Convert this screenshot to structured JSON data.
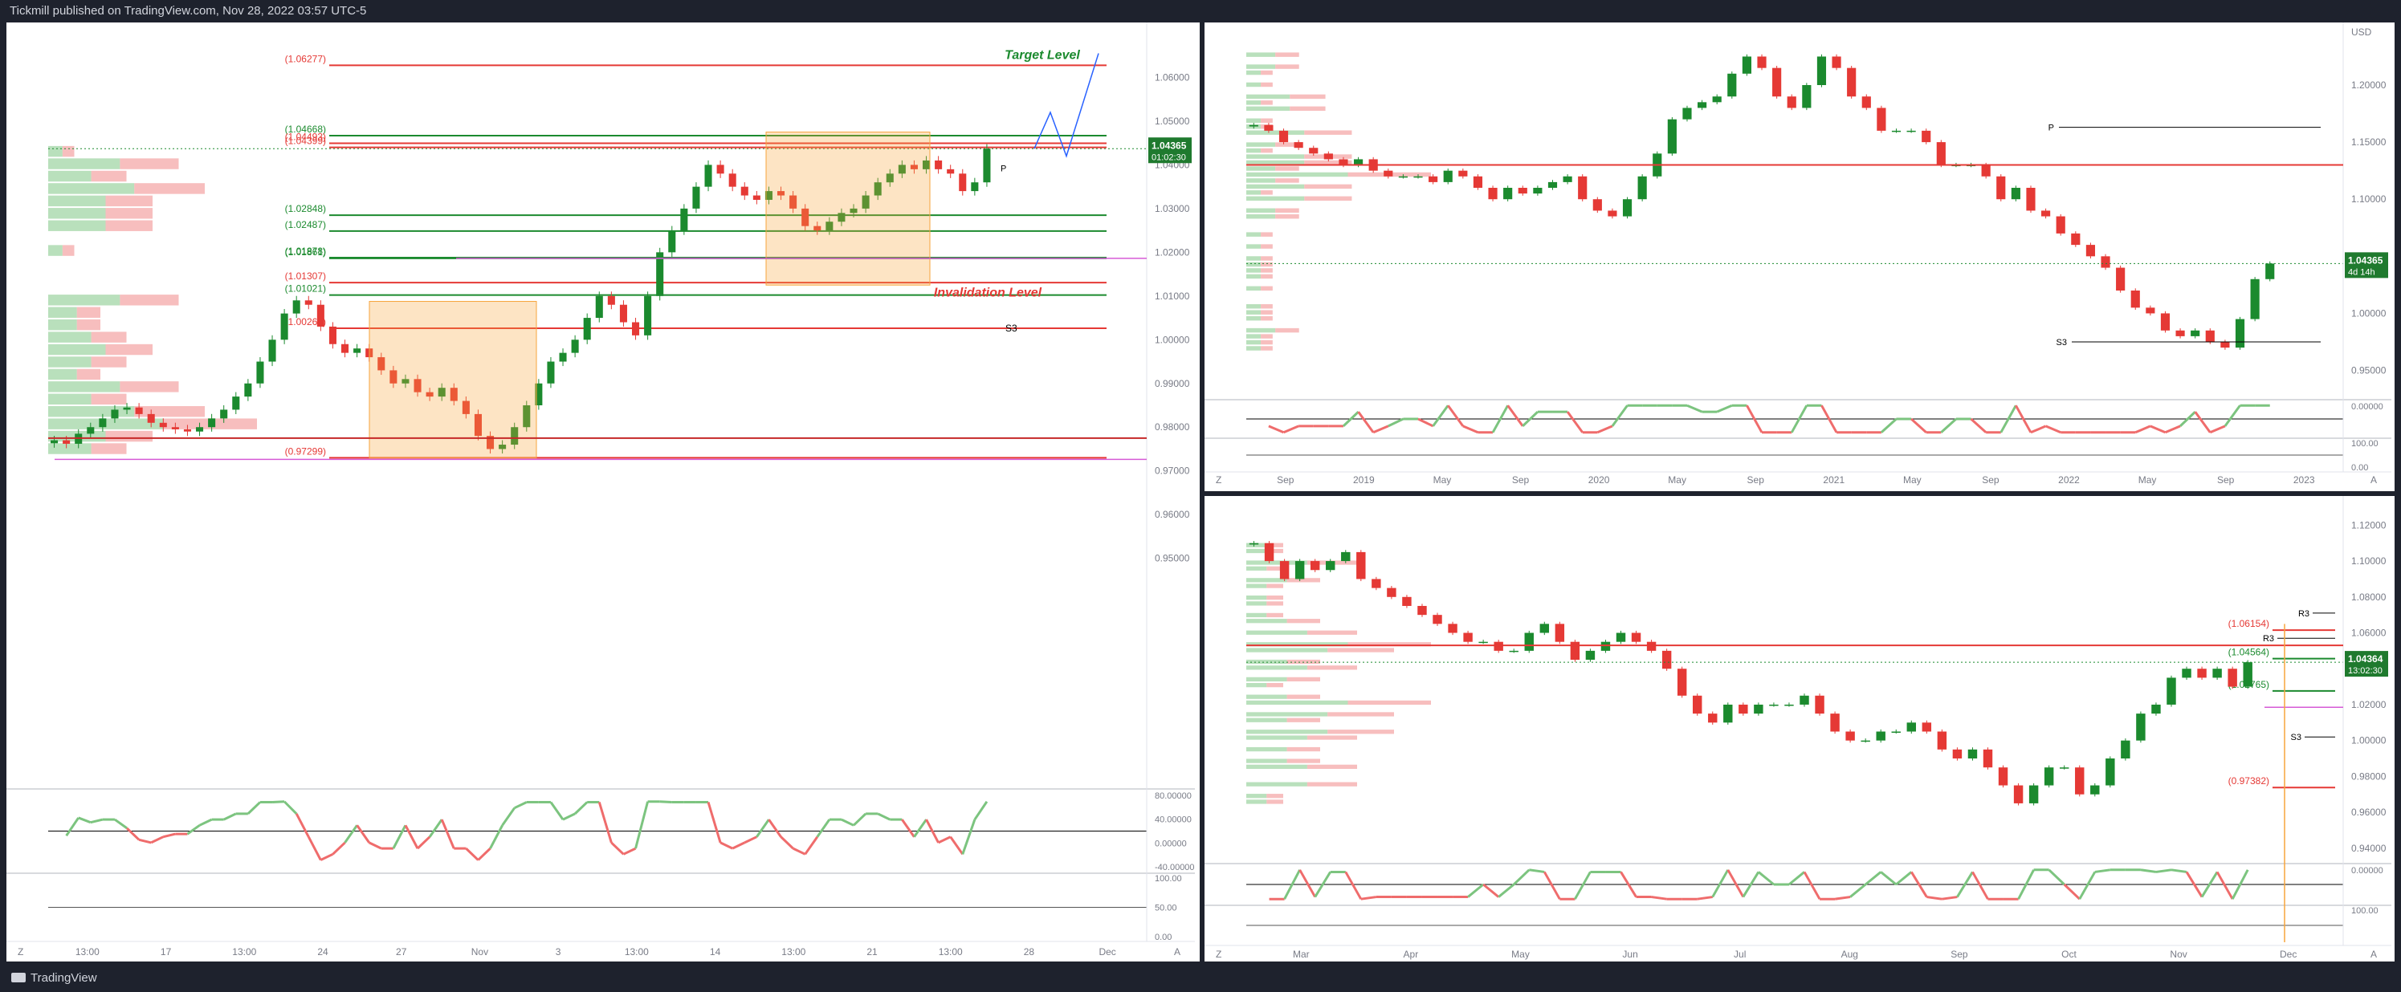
{
  "header": {
    "published": "Tickmill published on TradingView.com, Nov 28, 2022 03:57 UTC-5"
  },
  "footer": {
    "brand": "TradingView"
  },
  "colors": {
    "up": "#1b8a2e",
    "down": "#e53935",
    "orange": "#f7a53d",
    "magenta": "#d65ad6",
    "blue": "#2962ff"
  },
  "chart_data": [
    {
      "type": "candlestick",
      "panel": "left",
      "ylim": [
        0.9,
        1.07
      ],
      "y_ticks": [
        "1.06000",
        "1.05000",
        "1.04000",
        "1.03000",
        "1.02000",
        "1.01000",
        "1.00000",
        "0.99000",
        "0.98000",
        "0.97000",
        "0.96000",
        "0.95000"
      ],
      "x_ticks": [
        "13:00",
        "17",
        "13:00",
        "24",
        "27",
        "Nov",
        "3",
        "13:00",
        "14",
        "13:00",
        "21",
        "13:00",
        "28",
        "Dec"
      ],
      "levels": [
        {
          "label": "(1.06277)",
          "value": 1.06277,
          "color": "#e53935"
        },
        {
          "label": "(1.04668)",
          "value": 1.04668,
          "color": "#1b8a2e"
        },
        {
          "label": "(1.04399)",
          "value": 1.04399,
          "color": "#e53935"
        },
        {
          "label": "(1.04493)",
          "value": 1.04493,
          "color": "#e53935"
        },
        {
          "label": "(1.02848)",
          "value": 1.02848,
          "color": "#1b8a2e"
        },
        {
          "label": "(1.02487)",
          "value": 1.02487,
          "color": "#1b8a2e"
        },
        {
          "label": "(1.01861)",
          "value": 1.01861,
          "color": "#1b8a2e"
        },
        {
          "label": "(1.01878)",
          "value": 1.01878,
          "color": "#1b8a2e"
        },
        {
          "label": "(1.01307)",
          "value": 1.01307,
          "color": "#e53935"
        },
        {
          "label": "(1.01021)",
          "value": 1.01021,
          "color": "#1b8a2e"
        },
        {
          "label": "(1.00263)",
          "value": 1.00263,
          "color": "#e53935"
        },
        {
          "label": "(0.97299)",
          "value": 0.97299,
          "color": "#e53935"
        }
      ],
      "annotations": {
        "target": "Target Level",
        "invalidation": "Invalidation Level",
        "s3": "S3",
        "p": "P"
      },
      "price_tag": {
        "value": "1.04365",
        "sub": "01:02:30"
      },
      "osc1_ticks": [
        "80.00000",
        "40.00000",
        "0.00000",
        "-40.00000"
      ],
      "osc2_ticks": [
        "100.00",
        "50.00",
        "0.00"
      ],
      "close": [
        0.977,
        0.9762,
        0.9785,
        0.98,
        0.982,
        0.984,
        0.9845,
        0.983,
        0.981,
        0.98,
        0.9795,
        0.979,
        0.98,
        0.982,
        0.984,
        0.987,
        0.99,
        0.995,
        1.0,
        1.006,
        1.009,
        1.008,
        1.003,
        0.999,
        0.997,
        0.998,
        0.996,
        0.993,
        0.99,
        0.991,
        0.988,
        0.987,
        0.989,
        0.986,
        0.983,
        0.978,
        0.975,
        0.976,
        0.98,
        0.985,
        0.99,
        0.995,
        0.997,
        1.0,
        1.005,
        1.01,
        1.008,
        1.004,
        1.001,
        1.01,
        1.02,
        1.025,
        1.03,
        1.035,
        1.04,
        1.038,
        1.035,
        1.033,
        1.032,
        1.034,
        1.033,
        1.03,
        1.026,
        1.025,
        1.027,
        1.029,
        1.03,
        1.033,
        1.036,
        1.038,
        1.04,
        1.039,
        1.041,
        1.039,
        1.038,
        1.034,
        1.036,
        1.0437
      ]
    },
    {
      "type": "candlestick",
      "panel": "right-top",
      "ylim": [
        0.93,
        1.245
      ],
      "y_ticks": [
        "1.20000",
        "1.15000",
        "1.10000",
        "1.05000",
        "1.00000",
        "0.95000"
      ],
      "x_ticks": [
        "Sep",
        "2019",
        "May",
        "Sep",
        "2020",
        "May",
        "Sep",
        "2021",
        "May",
        "Sep",
        "2022",
        "May",
        "Sep",
        "2023"
      ],
      "annotations": {
        "p": "P",
        "s3": "S3"
      },
      "price_tag": {
        "value": "1.04365",
        "sub": "4d 14h"
      },
      "axis_unit": "USD",
      "osc1_ticks": [
        "0.00000"
      ],
      "osc2_ticks": [
        "100.00",
        "0.00"
      ],
      "close": [
        1.165,
        1.16,
        1.15,
        1.145,
        1.14,
        1.135,
        1.13,
        1.135,
        1.125,
        1.12,
        1.12,
        1.12,
        1.115,
        1.125,
        1.12,
        1.11,
        1.1,
        1.11,
        1.105,
        1.11,
        1.115,
        1.12,
        1.1,
        1.09,
        1.085,
        1.1,
        1.12,
        1.14,
        1.17,
        1.18,
        1.185,
        1.19,
        1.21,
        1.225,
        1.215,
        1.19,
        1.18,
        1.2,
        1.225,
        1.215,
        1.19,
        1.18,
        1.16,
        1.16,
        1.16,
        1.15,
        1.13,
        1.13,
        1.13,
        1.12,
        1.1,
        1.11,
        1.09,
        1.085,
        1.07,
        1.06,
        1.05,
        1.04,
        1.02,
        1.005,
        1.0,
        0.985,
        0.98,
        0.985,
        0.975,
        0.97,
        0.995,
        1.03,
        1.04365
      ]
    },
    {
      "type": "candlestick",
      "panel": "right-bottom",
      "ylim": [
        0.935,
        1.13
      ],
      "y_ticks": [
        "1.12000",
        "1.10000",
        "1.08000",
        "1.06000",
        "1.04000",
        "1.02000",
        "1.00000",
        "0.98000",
        "0.96000",
        "0.94000"
      ],
      "x_ticks": [
        "Mar",
        "Apr",
        "May",
        "Jun",
        "Jul",
        "Aug",
        "Sep",
        "Oct",
        "Nov",
        "Dec"
      ],
      "levels": [
        {
          "label": "(1.06154)",
          "value": 1.06154,
          "color": "#e53935"
        },
        {
          "label": "(1.04564)",
          "value": 1.04564,
          "color": "#1b8a2e"
        },
        {
          "label": "(1.02765)",
          "value": 1.02765,
          "color": "#1b8a2e"
        },
        {
          "label": "(0.97382)",
          "value": 0.97382,
          "color": "#e53935"
        }
      ],
      "annotations": {
        "r3": "R3",
        "r3b": "R3",
        "s3": "S3"
      },
      "price_tag": {
        "value": "1.04364",
        "sub": "13:02:30"
      },
      "osc1_ticks": [
        "0.00000"
      ],
      "osc2_ticks": [
        "100.00"
      ],
      "close": [
        1.11,
        1.1,
        1.09,
        1.1,
        1.095,
        1.1,
        1.105,
        1.09,
        1.085,
        1.08,
        1.075,
        1.07,
        1.065,
        1.06,
        1.055,
        1.055,
        1.05,
        1.05,
        1.06,
        1.065,
        1.055,
        1.045,
        1.05,
        1.055,
        1.06,
        1.055,
        1.05,
        1.04,
        1.025,
        1.015,
        1.01,
        1.02,
        1.015,
        1.02,
        1.02,
        1.02,
        1.025,
        1.015,
        1.005,
        1.0,
        1.0,
        1.005,
        1.005,
        1.01,
        1.005,
        0.995,
        0.99,
        0.995,
        0.985,
        0.975,
        0.965,
        0.975,
        0.985,
        0.985,
        0.97,
        0.975,
        0.99,
        1.0,
        1.015,
        1.02,
        1.035,
        1.04,
        1.035,
        1.04,
        1.03,
        1.04364
      ]
    }
  ]
}
